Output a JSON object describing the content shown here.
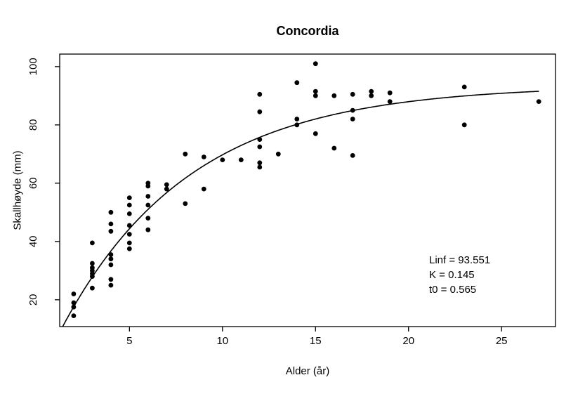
{
  "chart_data": {
    "type": "scatter",
    "title": "Concordia",
    "xlabel": "Alder (år)",
    "ylabel": "Skallhøyde (mm)",
    "x_ticks": [
      5,
      10,
      15,
      20,
      25
    ],
    "y_ticks": [
      20,
      40,
      60,
      80,
      100
    ],
    "xlim": [
      1.25,
      27.9
    ],
    "ylim": [
      10.8,
      104.3
    ],
    "grid": false,
    "point_color": "#000000",
    "curve_color": "#000000",
    "background": "#ffffff",
    "points": [
      [
        2,
        22
      ],
      [
        2,
        19
      ],
      [
        2,
        17.5
      ],
      [
        2,
        14.5
      ],
      [
        3,
        39.5
      ],
      [
        3,
        32.5
      ],
      [
        3,
        31
      ],
      [
        3,
        30
      ],
      [
        3,
        29
      ],
      [
        3,
        28
      ],
      [
        3,
        24
      ],
      [
        4,
        50
      ],
      [
        4,
        46
      ],
      [
        4,
        43.5
      ],
      [
        4,
        35.5
      ],
      [
        4,
        34
      ],
      [
        4,
        32
      ],
      [
        4,
        27
      ],
      [
        4,
        25
      ],
      [
        5,
        55
      ],
      [
        5,
        52.5
      ],
      [
        5,
        49.5
      ],
      [
        5,
        45.5
      ],
      [
        5,
        42.5
      ],
      [
        5,
        39.5
      ],
      [
        5,
        37.5
      ],
      [
        6,
        60
      ],
      [
        6,
        59
      ],
      [
        6,
        55.5
      ],
      [
        6,
        52.5
      ],
      [
        6,
        48
      ],
      [
        6,
        44
      ],
      [
        7,
        59.5
      ],
      [
        7,
        58
      ],
      [
        8,
        70
      ],
      [
        8,
        53
      ],
      [
        9,
        69
      ],
      [
        9,
        58
      ],
      [
        10,
        68
      ],
      [
        11,
        68
      ],
      [
        12,
        90.5
      ],
      [
        12,
        84.5
      ],
      [
        12,
        75
      ],
      [
        12,
        72.5
      ],
      [
        12,
        67
      ],
      [
        12,
        65.5
      ],
      [
        13,
        70
      ],
      [
        14,
        94.5
      ],
      [
        14,
        82
      ],
      [
        14,
        80
      ],
      [
        15,
        101
      ],
      [
        15,
        91.5
      ],
      [
        15,
        90
      ],
      [
        15,
        77
      ],
      [
        16,
        90
      ],
      [
        16,
        72
      ],
      [
        17,
        90.5
      ],
      [
        17,
        85
      ],
      [
        17,
        82
      ],
      [
        17,
        69.5
      ],
      [
        18,
        91.5
      ],
      [
        18,
        90
      ],
      [
        19,
        91
      ],
      [
        19,
        88
      ],
      [
        23,
        93
      ],
      [
        23,
        80
      ],
      [
        27,
        88
      ]
    ],
    "curve": {
      "model": "von_bertalanffy",
      "Linf": 93.551,
      "K": 0.145,
      "t0": 0.565,
      "t_range": [
        1.414,
        27.05
      ]
    },
    "annotation": {
      "lines": [
        "Linf = 93.551",
        "K = 0.145",
        "t0 = 0.565"
      ]
    }
  }
}
